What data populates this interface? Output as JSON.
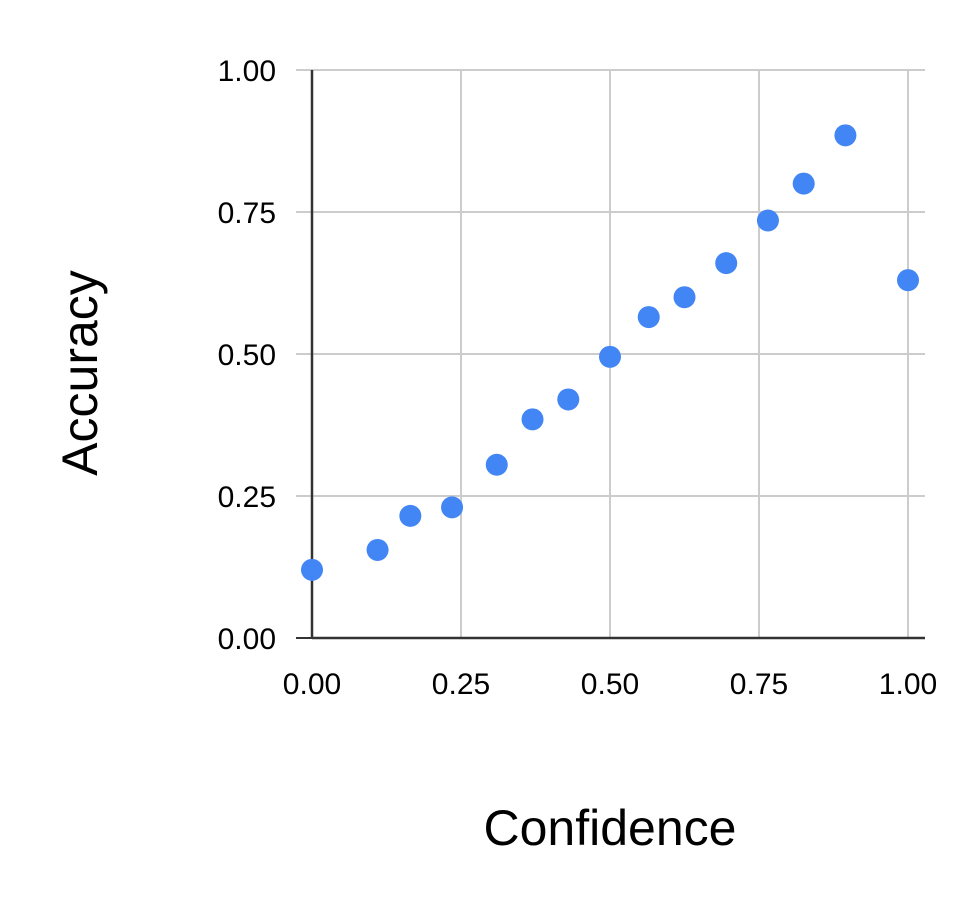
{
  "chart_data": {
    "type": "scatter",
    "title": "",
    "xlabel": "Confidence",
    "ylabel": "Accuracy",
    "xlim": [
      0,
      1
    ],
    "ylim": [
      0,
      1
    ],
    "x_ticks": [
      "0.00",
      "0.25",
      "0.50",
      "0.75",
      "1.00"
    ],
    "y_ticks": [
      "0.00",
      "0.25",
      "0.50",
      "0.75",
      "1.00"
    ],
    "grid": true,
    "legend": "none",
    "series": [
      {
        "color": "#4285F4",
        "points": [
          {
            "x": 0.0,
            "y": 0.12
          },
          {
            "x": 0.11,
            "y": 0.155
          },
          {
            "x": 0.165,
            "y": 0.215
          },
          {
            "x": 0.235,
            "y": 0.23
          },
          {
            "x": 0.31,
            "y": 0.305
          },
          {
            "x": 0.37,
            "y": 0.385
          },
          {
            "x": 0.43,
            "y": 0.42
          },
          {
            "x": 0.5,
            "y": 0.495
          },
          {
            "x": 0.565,
            "y": 0.565
          },
          {
            "x": 0.625,
            "y": 0.6
          },
          {
            "x": 0.695,
            "y": 0.66
          },
          {
            "x": 0.765,
            "y": 0.735
          },
          {
            "x": 0.825,
            "y": 0.8
          },
          {
            "x": 0.895,
            "y": 0.885
          },
          {
            "x": 1.0,
            "y": 0.63
          }
        ]
      }
    ]
  },
  "colors": {
    "grid": "#cccccc",
    "axis": "#333333",
    "point": "#4285F4"
  }
}
